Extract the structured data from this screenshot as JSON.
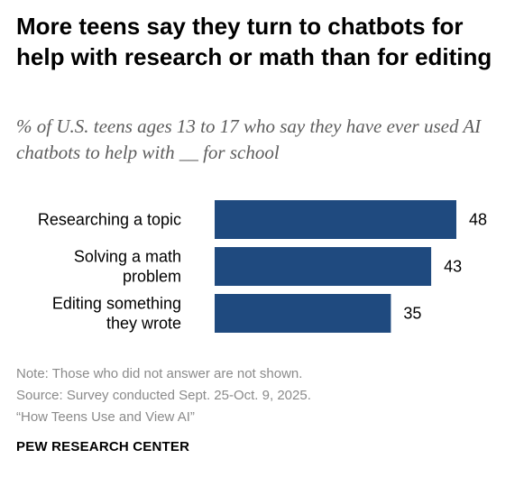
{
  "title": "More teens say they turn to chatbots for help with research or math than for editing",
  "subtitle": "% of U.S. teens ages 13 to 17 who say they have ever used AI chatbots to help with __ for school",
  "chart_data": {
    "type": "bar",
    "orientation": "horizontal",
    "categories": [
      [
        "Researching a topic"
      ],
      [
        "Solving a math",
        "problem"
      ],
      [
        "Editing something",
        "they wrote"
      ]
    ],
    "values": [
      48,
      43,
      35
    ],
    "value_labels": [
      "48",
      "43",
      "35"
    ],
    "xlim": [
      0,
      48
    ],
    "grid": false,
    "bar_color": "#1f4a7f"
  },
  "notes": {
    "note": "Note: Those who did not answer are not shown.",
    "source": "Source: Survey conducted Sept. 25-Oct. 9, 2025.",
    "report": "“How Teens Use and View AI”"
  },
  "footer": "PEW RESEARCH CENTER"
}
